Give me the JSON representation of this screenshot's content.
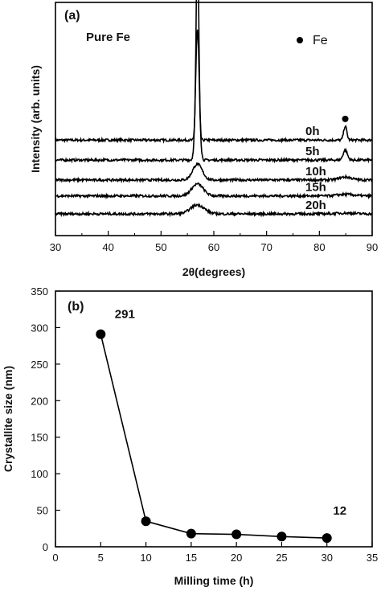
{
  "chart_data": [
    {
      "type": "line",
      "panel_label": "(a)",
      "annotation": "Pure Fe",
      "legend": {
        "label": "Fe",
        "marker": "filled-circle",
        "placement": "top-right"
      },
      "xlabel": "2θ(degrees)",
      "ylabel": "Intensity (arb. units)",
      "xlim": [
        30,
        90
      ],
      "x_ticks": [
        30,
        40,
        50,
        60,
        70,
        80,
        90
      ],
      "y_ticks_shown": false,
      "grid": false,
      "peak_markers_2theta": [
        56.9,
        84.9
      ],
      "series": [
        {
          "name": "0h",
          "baseline": 0.37,
          "peaks": [
            {
              "center": 56.9,
              "height": 1.0,
              "width": 0.25
            },
            {
              "center": 84.9,
              "height": 0.07,
              "width": 0.3
            }
          ]
        },
        {
          "name": "5h",
          "baseline": 0.27,
          "peaks": [
            {
              "center": 56.9,
              "height": 0.65,
              "width": 0.35
            },
            {
              "center": 84.9,
              "height": 0.05,
              "width": 0.4
            }
          ]
        },
        {
          "name": "10h",
          "baseline": 0.17,
          "peaks": [
            {
              "center": 56.9,
              "height": 0.08,
              "width": 0.9
            },
            {
              "center": 84.9,
              "height": 0.015,
              "width": 1.2
            }
          ]
        },
        {
          "name": "15h",
          "baseline": 0.09,
          "peaks": [
            {
              "center": 56.9,
              "height": 0.06,
              "width": 1.1
            },
            {
              "center": 84.9,
              "height": 0.008,
              "width": 1.5
            }
          ]
        },
        {
          "name": "20h",
          "baseline": 0.0,
          "peaks": [
            {
              "center": 56.9,
              "height": 0.045,
              "width": 1.3
            },
            {
              "center": 84.9,
              "height": 0.004,
              "width": 1.8
            }
          ]
        }
      ]
    },
    {
      "type": "line",
      "panel_label": "(b)",
      "xlabel": "Milling time (h)",
      "ylabel": "Crystallite size (nm)",
      "xlim": [
        0,
        35
      ],
      "ylim": [
        0,
        350
      ],
      "x_ticks": [
        0,
        5,
        10,
        15,
        20,
        25,
        30,
        35
      ],
      "y_ticks": [
        0,
        50,
        100,
        150,
        200,
        250,
        300,
        350
      ],
      "grid": false,
      "markers": "filled-circle",
      "x": [
        5,
        10,
        15,
        20,
        25,
        30
      ],
      "y": [
        291,
        35,
        18,
        17,
        14,
        12
      ],
      "data_labels": [
        {
          "text": "291",
          "x": 5,
          "y": 291
        },
        {
          "text": "12",
          "x": 30,
          "y": 12
        }
      ]
    }
  ]
}
